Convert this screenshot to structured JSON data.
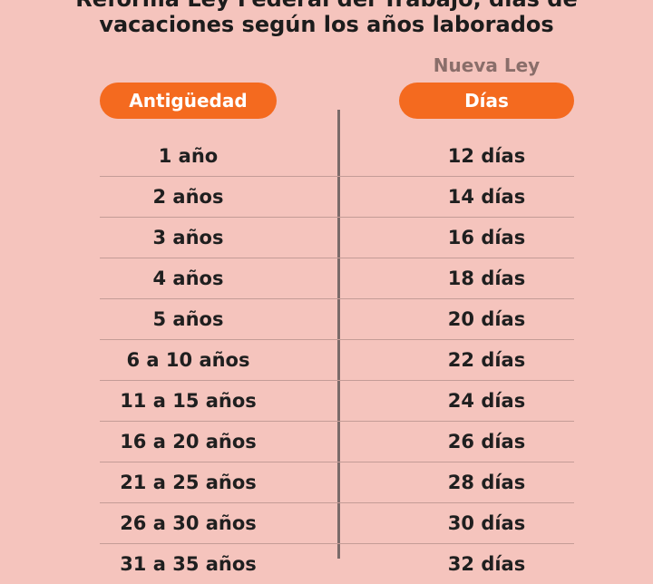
{
  "title": {
    "line1": "Reforma Ley Federal del Trabajo, días de",
    "line2": "vacaciones según los años laborados"
  },
  "headers": {
    "right_subheader": "Nueva Ley",
    "left": "Antigüedad",
    "right": "Días"
  },
  "colors": {
    "background": "#f5c4bd",
    "accent": "#f46a1f",
    "divider": "#7a6a69"
  },
  "rows": [
    {
      "antiguedad": "1 año",
      "dias": "12 días"
    },
    {
      "antiguedad": "2 años",
      "dias": "14 días"
    },
    {
      "antiguedad": "3 años",
      "dias": "16 días"
    },
    {
      "antiguedad": "4 años",
      "dias": "18 días"
    },
    {
      "antiguedad": "5 años",
      "dias": "20 días"
    },
    {
      "antiguedad": "6 a 10 años",
      "dias": "22 días"
    },
    {
      "antiguedad": "11 a 15 años",
      "dias": "24 días"
    },
    {
      "antiguedad": "16 a 20 años",
      "dias": "26 días"
    },
    {
      "antiguedad": "21 a 25 años",
      "dias": "28 días"
    },
    {
      "antiguedad": "26 a 30 años",
      "dias": "30 días"
    },
    {
      "antiguedad": "31 a 35 años",
      "dias": "32 días"
    }
  ]
}
